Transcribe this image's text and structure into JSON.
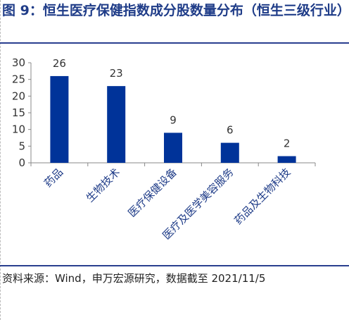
{
  "title": "图 9：恒生医疗保健指数成分股数量分布（恒生三级行业）",
  "source": "资料来源：Wind，申万宏源研究，数据截至 2021/11/5",
  "chart_data": {
    "type": "bar",
    "categories": [
      "药品",
      "生物技术",
      "医疗保健设备",
      "医疗及医学美容服务",
      "药品及生物科技"
    ],
    "values": [
      26,
      23,
      9,
      6,
      2
    ],
    "data_labels": [
      "26",
      "23",
      "9",
      "6",
      "2"
    ],
    "yticks": [
      "0",
      "5",
      "10",
      "15",
      "20",
      "25",
      "30"
    ],
    "ylim": [
      0,
      30
    ],
    "bar_color": "#003399",
    "grid": false,
    "legend": "none"
  }
}
